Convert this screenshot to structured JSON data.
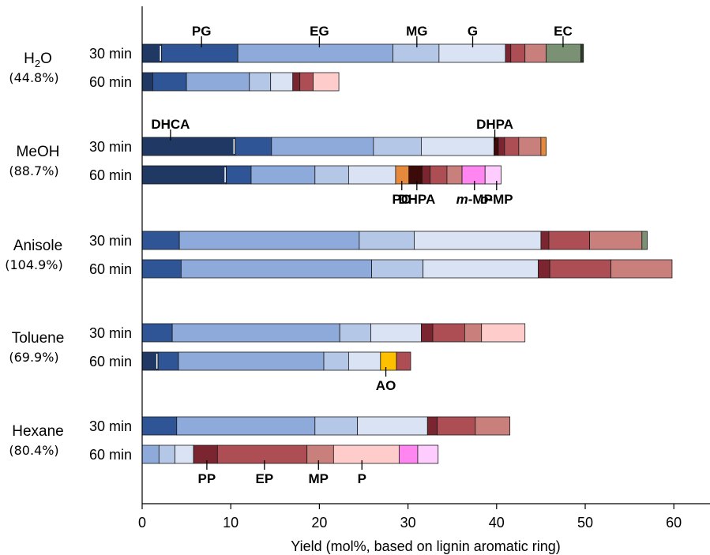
{
  "chart_data": {
    "type": "bar",
    "orientation": "horizontal",
    "stacked": true,
    "xlabel": "Yield (mol%, based on lignin aromatic ring)",
    "xlim": [
      0,
      64
    ],
    "xticks": [
      0,
      10,
      20,
      30,
      40,
      50,
      60
    ],
    "grid": false,
    "groups": [
      {
        "solvent": "H₂O",
        "total_label": "(44.8%)",
        "rows": [
          {
            "time": "30 min",
            "segments": [
              {
                "color": "#1f3864",
                "value": 2.2
              },
              {
                "color": "#2f5597",
                "value": 8.6
              },
              {
                "color": "#8eaadb",
                "value": 17.5
              },
              {
                "color": "#b4c7e7",
                "value": 5.2
              },
              {
                "color": "#dae3f3",
                "value": 7.5
              },
              {
                "color": "#7b2531",
                "value": 0.6
              },
              {
                "color": "#ad4e55",
                "value": 1.6
              },
              {
                "color": "#c9807d",
                "value": 2.4
              },
              {
                "color": "#7a9273",
                "value": 3.9
              },
              {
                "color": "#2e3b2a",
                "value": 0.3
              }
            ]
          },
          {
            "time": "60 min",
            "segments": [
              {
                "color": "#1f3864",
                "value": 1.2
              },
              {
                "color": "#2f5597",
                "value": 3.8
              },
              {
                "color": "#8eaadb",
                "value": 7.1
              },
              {
                "color": "#b4c7e7",
                "value": 2.4
              },
              {
                "color": "#dae3f3",
                "value": 2.5
              },
              {
                "color": "#7b2531",
                "value": 0.8
              },
              {
                "color": "#ad4e55",
                "value": 1.5
              },
              {
                "color": "#ffcccc",
                "value": 2.9
              }
            ]
          }
        ]
      },
      {
        "solvent": "MeOH",
        "total_label": "(88.7%)",
        "rows": [
          {
            "time": "30 min",
            "segments": [
              {
                "color": "#1f3864",
                "value": 10.5
              },
              {
                "color": "#2f5597",
                "value": 4.1
              },
              {
                "color": "#8eaadb",
                "value": 11.5
              },
              {
                "color": "#b4c7e7",
                "value": 5.4
              },
              {
                "color": "#dae3f3",
                "value": 8.2
              },
              {
                "color": "#3d0a0a",
                "value": 0.5
              },
              {
                "color": "#7b2531",
                "value": 0.7
              },
              {
                "color": "#ad4e55",
                "value": 1.6
              },
              {
                "color": "#c9807d",
                "value": 2.5
              },
              {
                "color": "#e58a3c",
                "value": 0.6
              }
            ]
          },
          {
            "time": "60 min",
            "segments": [
              {
                "color": "#1f3864",
                "value": 9.5
              },
              {
                "color": "#2f5597",
                "value": 2.8
              },
              {
                "color": "#8eaadb",
                "value": 7.2
              },
              {
                "color": "#b4c7e7",
                "value": 3.8
              },
              {
                "color": "#dae3f3",
                "value": 5.3
              },
              {
                "color": "#e58a3c",
                "value": 1.5
              },
              {
                "color": "#3d0a0a",
                "value": 1.5
              },
              {
                "color": "#7b2531",
                "value": 0.9
              },
              {
                "color": "#ad4e55",
                "value": 1.9
              },
              {
                "color": "#c9807d",
                "value": 1.7
              },
              {
                "color": "#ff85f0",
                "value": 2.6
              },
              {
                "color": "#ffccff",
                "value": 1.8
              }
            ]
          }
        ]
      },
      {
        "solvent": "Anisole",
        "total_label": "(104.9%)",
        "rows": [
          {
            "time": "30 min",
            "segments": [
              {
                "color": "#2f5597",
                "value": 4.2
              },
              {
                "color": "#8eaadb",
                "value": 20.3
              },
              {
                "color": "#b4c7e7",
                "value": 6.2
              },
              {
                "color": "#dae3f3",
                "value": 14.3
              },
              {
                "color": "#7b2531",
                "value": 0.9
              },
              {
                "color": "#ad4e55",
                "value": 4.6
              },
              {
                "color": "#c9807d",
                "value": 5.9
              },
              {
                "color": "#7a9273",
                "value": 0.6
              }
            ]
          },
          {
            "time": "60 min",
            "segments": [
              {
                "color": "#2f5597",
                "value": 4.4
              },
              {
                "color": "#8eaadb",
                "value": 21.5
              },
              {
                "color": "#b4c7e7",
                "value": 5.8
              },
              {
                "color": "#dae3f3",
                "value": 13.0
              },
              {
                "color": "#7b2531",
                "value": 1.3
              },
              {
                "color": "#ad4e55",
                "value": 6.9
              },
              {
                "color": "#c9807d",
                "value": 6.9
              }
            ]
          }
        ]
      },
      {
        "solvent": "Toluene",
        "total_label": "(69.9%)",
        "rows": [
          {
            "time": "30 min",
            "segments": [
              {
                "color": "#2f5597",
                "value": 3.4
              },
              {
                "color": "#8eaadb",
                "value": 18.9
              },
              {
                "color": "#b4c7e7",
                "value": 3.5
              },
              {
                "color": "#dae3f3",
                "value": 5.7
              },
              {
                "color": "#7b2531",
                "value": 1.3
              },
              {
                "color": "#ad4e55",
                "value": 3.6
              },
              {
                "color": "#c9807d",
                "value": 1.9
              },
              {
                "color": "#ffcccc",
                "value": 4.9
              }
            ]
          },
          {
            "time": "60 min",
            "segments": [
              {
                "color": "#1f3864",
                "value": 1.8
              },
              {
                "color": "#2f5597",
                "value": 2.3
              },
              {
                "color": "#8eaadb",
                "value": 16.4
              },
              {
                "color": "#b4c7e7",
                "value": 2.8
              },
              {
                "color": "#dae3f3",
                "value": 3.6
              },
              {
                "color": "#ffc000",
                "value": 1.8
              },
              {
                "color": "#ad4e55",
                "value": 1.6
              }
            ]
          }
        ]
      },
      {
        "solvent": "Hexane",
        "total_label": "(80.4%)",
        "rows": [
          {
            "time": "30 min",
            "segments": [
              {
                "color": "#2f5597",
                "value": 3.9
              },
              {
                "color": "#8eaadb",
                "value": 15.6
              },
              {
                "color": "#b4c7e7",
                "value": 4.8
              },
              {
                "color": "#dae3f3",
                "value": 7.9
              },
              {
                "color": "#7b2531",
                "value": 1.1
              },
              {
                "color": "#ad4e55",
                "value": 4.3
              },
              {
                "color": "#c9807d",
                "value": 3.9
              }
            ]
          },
          {
            "time": "60 min",
            "segments": [
              {
                "color": "#8eaadb",
                "value": 1.9
              },
              {
                "color": "#b4c7e7",
                "value": 1.8
              },
              {
                "color": "#dae3f3",
                "value": 2.1
              },
              {
                "color": "#7b2531",
                "value": 2.7
              },
              {
                "color": "#ad4e55",
                "value": 10.1
              },
              {
                "color": "#c9807d",
                "value": 3.0
              },
              {
                "color": "#ffcccc",
                "value": 7.4
              },
              {
                "color": "#ff85f0",
                "value": 2.1
              },
              {
                "color": "#ffccff",
                "value": 2.3
              }
            ]
          }
        ]
      }
    ],
    "annotations": [
      {
        "text": "PG",
        "row": [
          0,
          0
        ],
        "x": 6.7,
        "pos": "above"
      },
      {
        "text": "EG",
        "row": [
          0,
          0
        ],
        "x": 20.0,
        "pos": "above"
      },
      {
        "text": "MG",
        "row": [
          0,
          0
        ],
        "x": 31.0,
        "pos": "above"
      },
      {
        "text": "G",
        "row": [
          0,
          0
        ],
        "x": 37.3,
        "pos": "above"
      },
      {
        "text": "EC",
        "row": [
          0,
          0
        ],
        "x": 47.5,
        "pos": "above"
      },
      {
        "text": "DHCA",
        "row": [
          1,
          0
        ],
        "x": 3.2,
        "pos": "above"
      },
      {
        "text": "DHPA",
        "row": [
          1,
          0
        ],
        "x": 39.8,
        "pos": "above"
      },
      {
        "text": "PO",
        "row": [
          1,
          1
        ],
        "x": 29.3,
        "pos": "below"
      },
      {
        "text": "DHPA",
        "row": [
          1,
          1
        ],
        "x": 31.0,
        "pos": "below"
      },
      {
        "text": "m-MP",
        "row": [
          1,
          1
        ],
        "x": 37.5,
        "pos": "below"
      },
      {
        "text": "o-MP",
        "row": [
          1,
          1
        ],
        "x": 40.0,
        "pos": "below"
      },
      {
        "text": "AO",
        "row": [
          3,
          1
        ],
        "x": 27.5,
        "pos": "below"
      },
      {
        "text": "PP",
        "row": [
          4,
          1
        ],
        "x": 7.3,
        "pos": "below"
      },
      {
        "text": "EP",
        "row": [
          4,
          1
        ],
        "x": 13.8,
        "pos": "below"
      },
      {
        "text": "MP",
        "row": [
          4,
          1
        ],
        "x": 19.9,
        "pos": "below"
      },
      {
        "text": "P",
        "row": [
          4,
          1
        ],
        "x": 24.8,
        "pos": "below"
      }
    ]
  }
}
